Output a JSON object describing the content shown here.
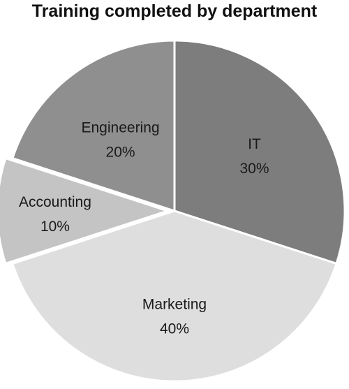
{
  "chart_data": {
    "type": "pie",
    "title": "Training completed by department",
    "slices": [
      {
        "label": "IT",
        "value": 30,
        "value_label": "30%",
        "color": "#7d7d7d"
      },
      {
        "label": "Marketing",
        "value": 40,
        "value_label": "40%",
        "color": "#dedede"
      },
      {
        "label": "Accounting",
        "value": 10,
        "value_label": "10%",
        "color": "#c4c4c4"
      },
      {
        "label": "Engineering",
        "value": 20,
        "value_label": "20%",
        "color": "#8f8f8f"
      }
    ]
  }
}
